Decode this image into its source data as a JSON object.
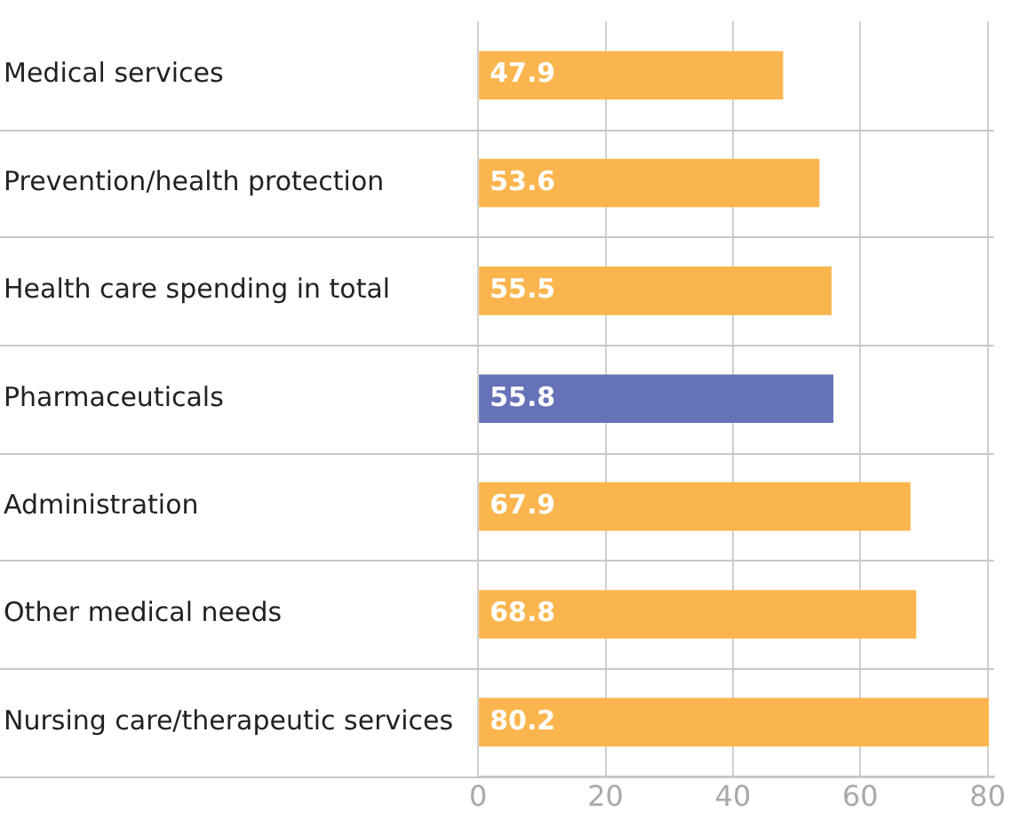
{
  "chart_data": {
    "type": "bar",
    "orientation": "horizontal",
    "categories": [
      "Medical services",
      "Prevention/health protection",
      "Health care spending in total",
      "Pharmaceuticals",
      "Administration",
      "Other medical needs",
      "Nursing care/therapeutic services"
    ],
    "values": [
      47.9,
      53.6,
      55.5,
      55.8,
      67.9,
      68.8,
      80.2
    ],
    "colors": [
      "#fbb54e",
      "#fbb54e",
      "#fbb54e",
      "#6672b8",
      "#fbb54e",
      "#fbb54e",
      "#fbb54e"
    ],
    "xlim": [
      0,
      81
    ],
    "xticks": [
      0,
      20,
      40,
      60,
      80
    ],
    "grid": "x",
    "data_labels": true,
    "legend": false
  }
}
